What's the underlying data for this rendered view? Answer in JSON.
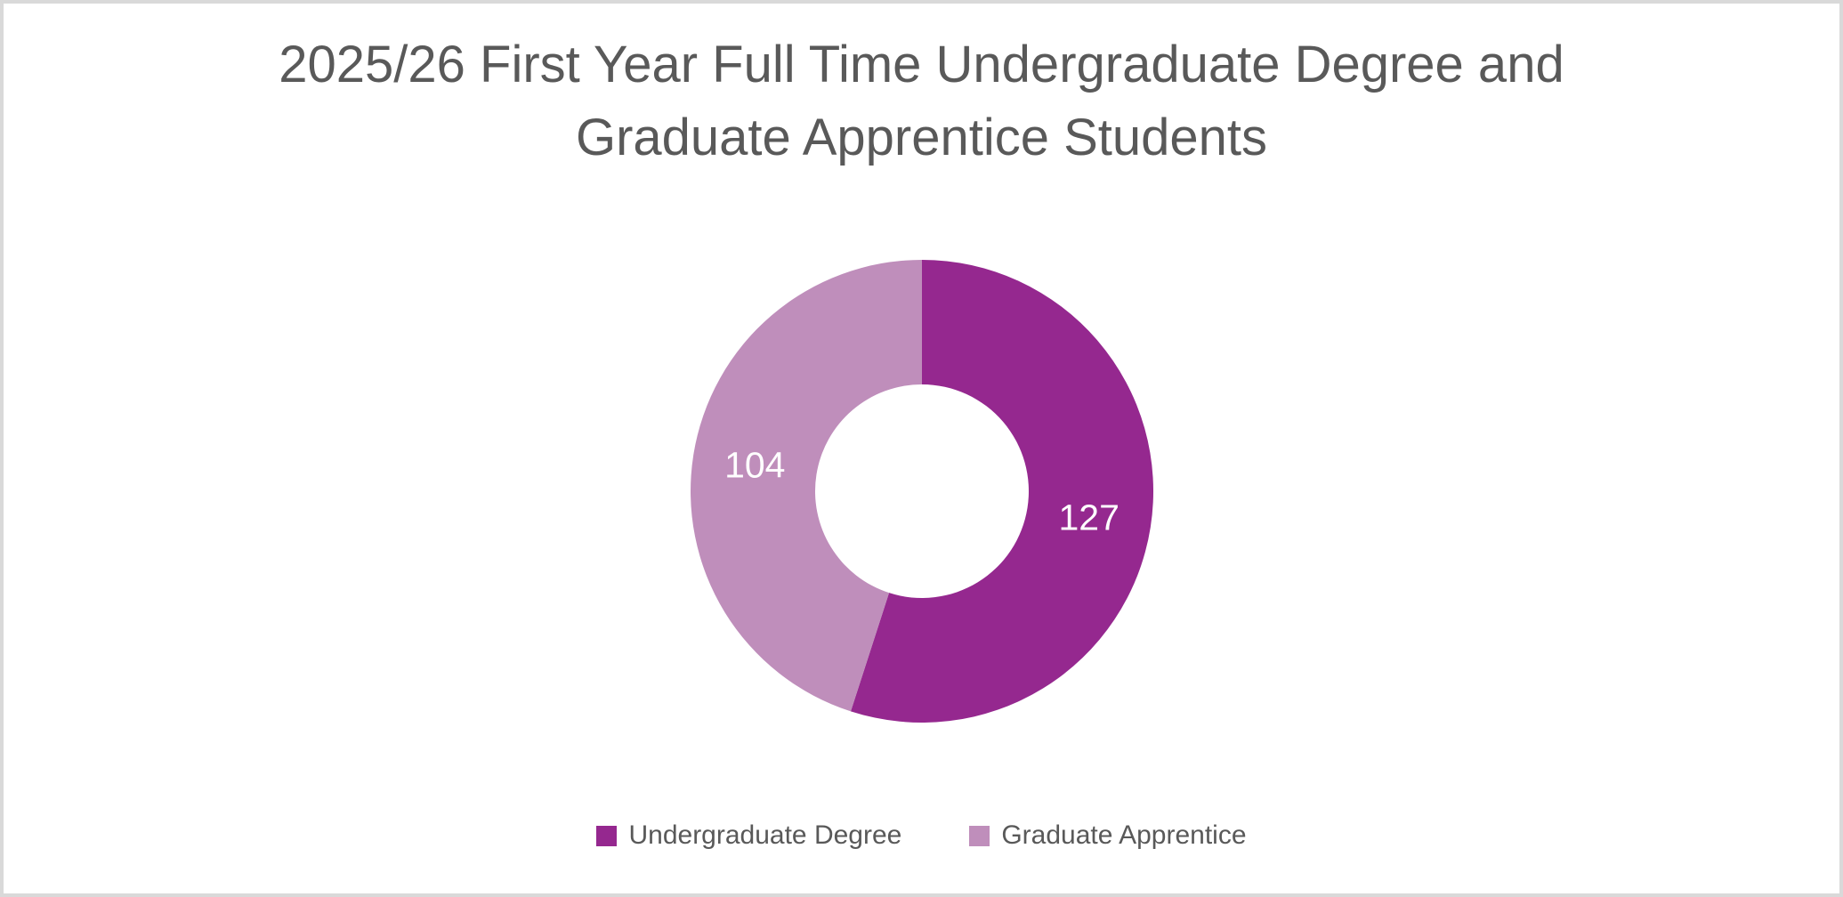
{
  "page": {
    "background_color": "#FFFFFF",
    "border_color": "#D9D9D9"
  },
  "chart_data": {
    "type": "pie",
    "subtype": "donut",
    "title": "2025/26 First Year Full Time Undergraduate Degree and Graduate Apprentice Students",
    "categories": [
      "Undergraduate Degree",
      "Graduate Apprentice"
    ],
    "values": [
      127,
      104
    ],
    "colors": [
      "#95288F",
      "#BF8EBB"
    ],
    "data_labels": [
      "127",
      "104"
    ],
    "data_label_color": "#FFFFFF",
    "title_color": "#595959",
    "legend_text_color": "#595959",
    "legend_position": "bottom",
    "start_angle": 0,
    "direction": "clockwise",
    "hole_ratio": 0.46,
    "grid": false
  }
}
